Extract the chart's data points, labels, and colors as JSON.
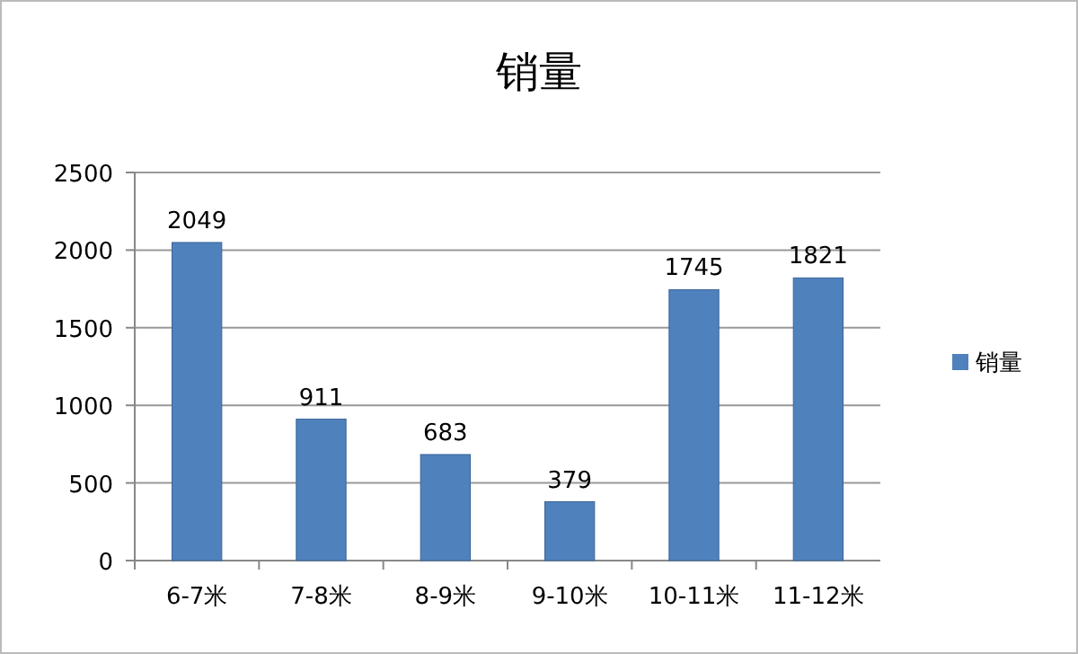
{
  "chart_data": {
    "type": "bar",
    "title": "销量",
    "categories": [
      "6-7米",
      "7-8米",
      "8-9米",
      "9-10米",
      "10-11米",
      "11-12米"
    ],
    "series": [
      {
        "name": "销量",
        "color": "#4f81bd",
        "values": [
          2049,
          911,
          683,
          379,
          1745,
          1821
        ]
      }
    ],
    "ylim": [
      0,
      2500
    ],
    "yticks": [
      0,
      500,
      1000,
      1500,
      2000,
      2500
    ],
    "grid": "y",
    "legend": "right",
    "data_labels": true
  }
}
